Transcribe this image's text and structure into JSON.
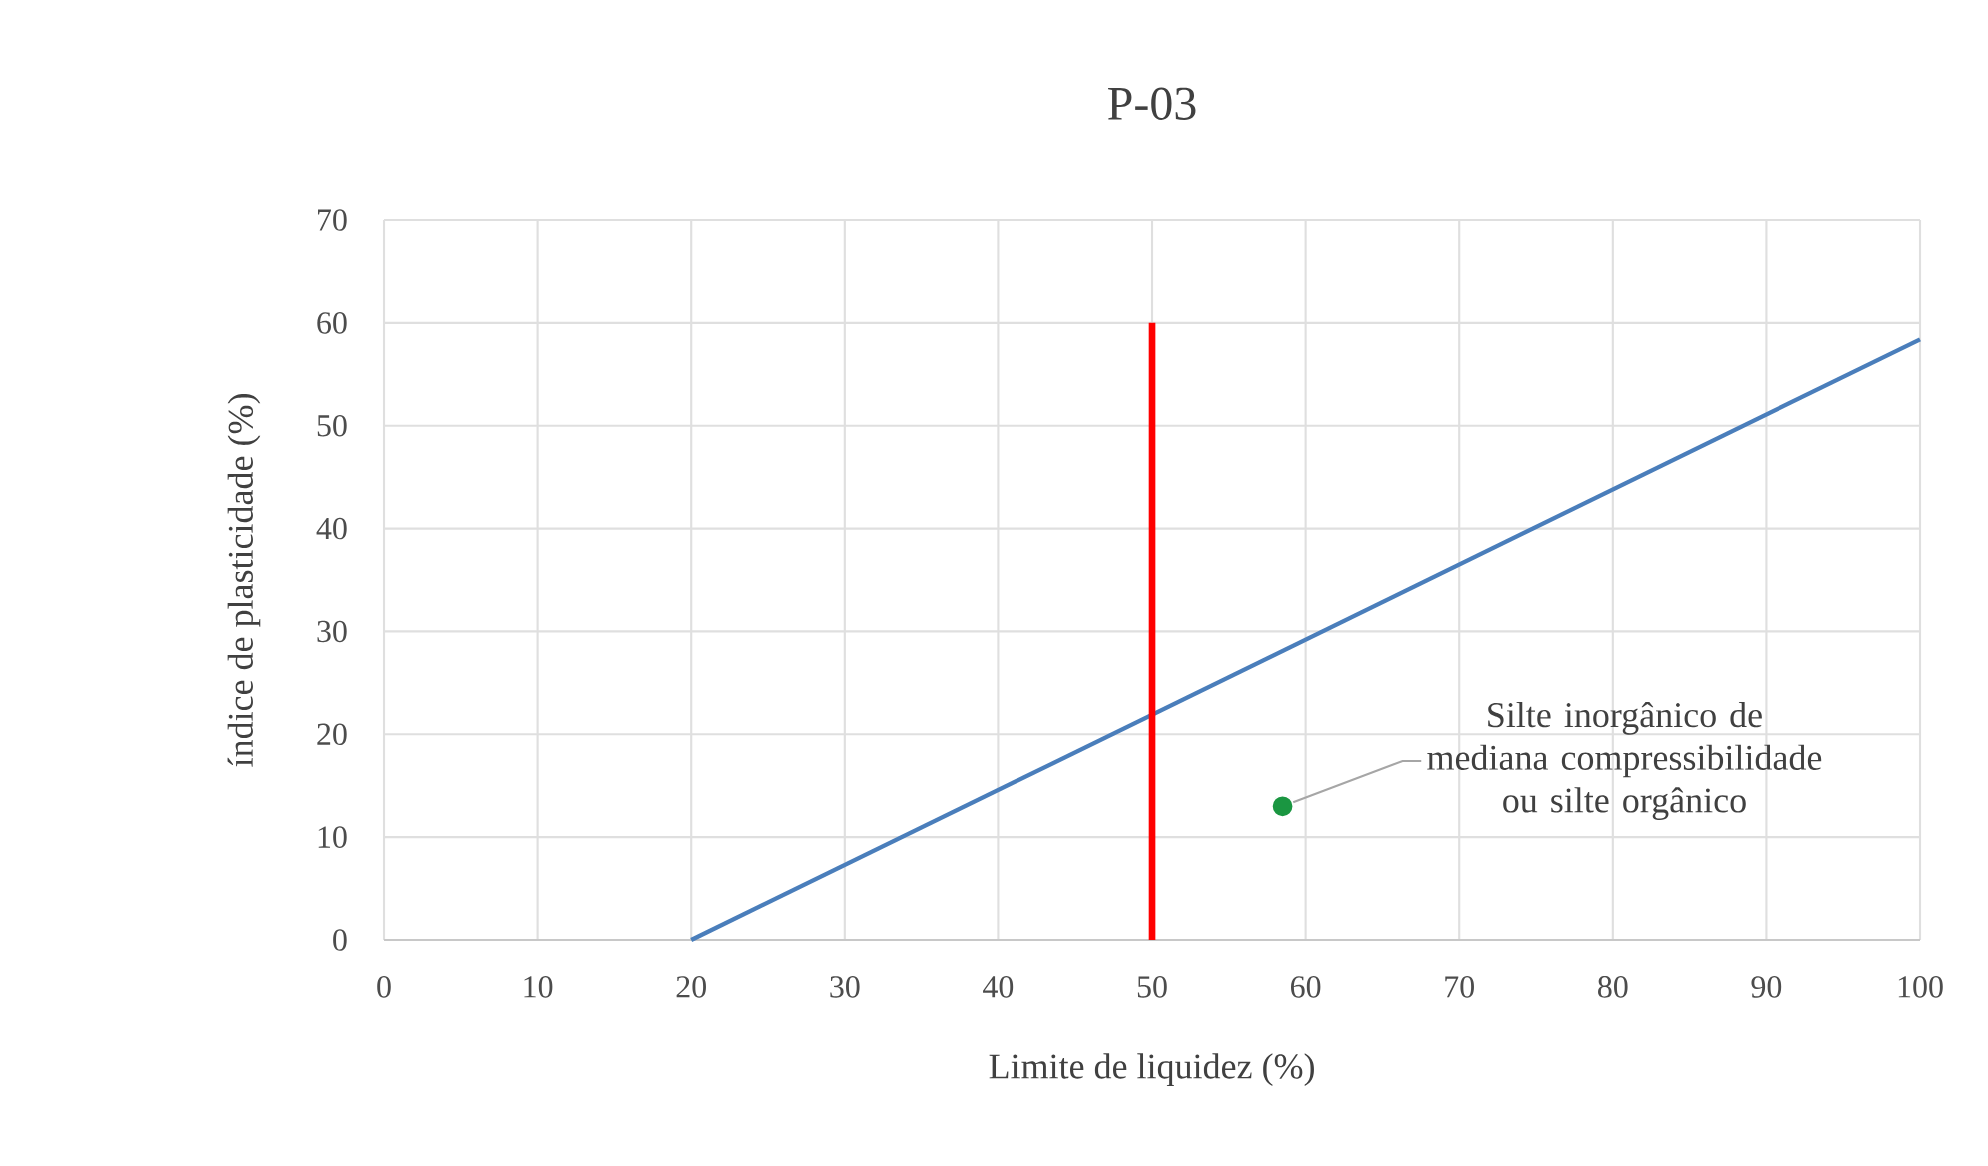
{
  "chart_data": {
    "type": "line",
    "title": "P-03",
    "xlabel": "Limite de liquidez (%)",
    "ylabel": "índice de plasticidade (%)",
    "xlim": [
      0,
      100
    ],
    "ylim": [
      0,
      70
    ],
    "xticks": [
      0,
      10,
      20,
      30,
      40,
      50,
      60,
      70,
      80,
      90,
      100
    ],
    "yticks": [
      0,
      10,
      20,
      30,
      40,
      50,
      60,
      70
    ],
    "grid": true,
    "series": [
      {
        "color": "#4a7ebb",
        "x": [
          20,
          100
        ],
        "values": [
          0,
          58.4
        ]
      },
      {
        "color": "#ff0000",
        "x": [
          50,
          50
        ],
        "values": [
          0,
          60
        ]
      },
      {
        "type": "scatter",
        "marker": "circle",
        "color": "#1a9641",
        "x": [
          58.5
        ],
        "values": [
          13
        ]
      }
    ],
    "annotations": [
      {
        "text": "Silte inorgânico de mediana compressibilidade ou silte orgânico",
        "x": 58.5,
        "y": 13
      }
    ]
  }
}
